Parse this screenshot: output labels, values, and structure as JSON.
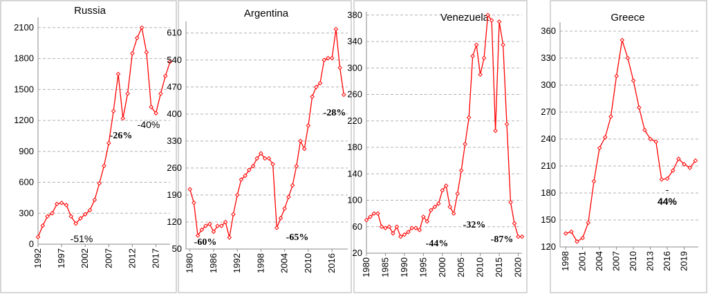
{
  "chart_data": [
    {
      "type": "line",
      "title": "Russia",
      "color": "#ff0000",
      "grid": true,
      "x": [
        1992,
        1993,
        1994,
        1995,
        1996,
        1997,
        1998,
        1999,
        2000,
        2001,
        2002,
        2003,
        2004,
        2005,
        2006,
        2007,
        2008,
        2009,
        2010,
        2011,
        2012,
        2013,
        2014,
        2015,
        2016,
        2017,
        2018,
        2019,
        2020
      ],
      "values": [
        70,
        180,
        270,
        300,
        390,
        400,
        380,
        270,
        200,
        250,
        290,
        330,
        430,
        590,
        760,
        980,
        1290,
        1650,
        1220,
        1460,
        1850,
        2000,
        2100,
        1860,
        1330,
        1270,
        1460,
        1630,
        1770
      ],
      "xlim": [
        1992,
        2020
      ],
      "xticks": [
        1992,
        1997,
        2002,
        2007,
        2012,
        2017
      ],
      "ylim": [
        0,
        2200
      ],
      "yticks": [
        0,
        300,
        600,
        900,
        1200,
        1500,
        1800,
        2100
      ],
      "annotations": [
        "-51%",
        "-26%",
        "-40%"
      ]
    },
    {
      "type": "line",
      "title": "Argentina",
      "color": "#ff0000",
      "grid": true,
      "x": [
        1980,
        1981,
        1982,
        1983,
        1984,
        1985,
        1986,
        1987,
        1988,
        1989,
        1990,
        1991,
        1992,
        1993,
        1994,
        1995,
        1996,
        1997,
        1998,
        1999,
        2000,
        2001,
        2002,
        2003,
        2004,
        2005,
        2006,
        2007,
        2008,
        2009,
        2010,
        2011,
        2012,
        2013,
        2014,
        2015,
        2016,
        2017,
        2018,
        2019
      ],
      "values": [
        205,
        170,
        85,
        100,
        110,
        115,
        95,
        110,
        110,
        120,
        80,
        140,
        190,
        230,
        240,
        255,
        265,
        285,
        298,
        285,
        285,
        270,
        105,
        130,
        155,
        185,
        215,
        265,
        330,
        310,
        370,
        445,
        470,
        480,
        540,
        545,
        545,
        620,
        520,
        450
      ],
      "xlim": [
        1979,
        2020
      ],
      "xticks": [
        1980,
        1986,
        1992,
        1998,
        2004,
        2010,
        2016
      ],
      "ylim": [
        50,
        640
      ],
      "yticks": [
        50,
        120,
        190,
        260,
        330,
        400,
        470,
        540,
        610
      ],
      "annotations": [
        "-60%",
        "-65%",
        "-28%"
      ]
    },
    {
      "type": "line",
      "title": "Venezuela",
      "color": "#ff0000",
      "grid": true,
      "x": [
        1980,
        1981,
        1982,
        1983,
        1984,
        1985,
        1986,
        1987,
        1988,
        1989,
        1990,
        1991,
        1992,
        1993,
        1994,
        1995,
        1996,
        1997,
        1998,
        1999,
        2000,
        2001,
        2002,
        2003,
        2004,
        2005,
        2006,
        2007,
        2008,
        2009,
        2010,
        2011,
        2012,
        2013,
        2014,
        2015,
        2016,
        2017,
        2018,
        2019,
        2020,
        2021
      ],
      "values": [
        70,
        75,
        80,
        80,
        60,
        58,
        60,
        50,
        60,
        45,
        48,
        52,
        58,
        58,
        55,
        75,
        68,
        85,
        90,
        95,
        115,
        122,
        90,
        80,
        110,
        145,
        185,
        225,
        318,
        335,
        290,
        315,
        380,
        372,
        205,
        370,
        335,
        215,
        97,
        65,
        45,
        45
      ],
      "xlim": [
        1980,
        2021
      ],
      "xticks": [
        1980,
        1985,
        1990,
        1995,
        2000,
        2005,
        2010,
        2015,
        2020
      ],
      "ylim": [
        20,
        385
      ],
      "yticks": [
        20,
        60,
        100,
        140,
        180,
        220,
        260,
        300,
        340,
        380
      ],
      "annotations": [
        "-44%",
        "-32%",
        "-87%"
      ]
    },
    {
      "type": "line",
      "title": "Greece",
      "color": "#ff0000",
      "grid": true,
      "x": [
        1998,
        1999,
        2000,
        2001,
        2002,
        2003,
        2004,
        2005,
        2006,
        2007,
        2008,
        2009,
        2010,
        2011,
        2012,
        2013,
        2014,
        2015,
        2016,
        2017,
        2018,
        2019,
        2020,
        2021
      ],
      "values": [
        135,
        137,
        126,
        130,
        147,
        193,
        230,
        242,
        265,
        310,
        350,
        330,
        305,
        275,
        250,
        240,
        237,
        195,
        196,
        205,
        218,
        212,
        208,
        216
      ],
      "xlim": [
        1997,
        2021.5
      ],
      "xticks": [
        1998,
        2001,
        2004,
        2007,
        2010,
        2013,
        2016,
        2019
      ],
      "ylim": [
        120,
        370
      ],
      "yticks": [
        120,
        150,
        180,
        210,
        240,
        270,
        300,
        330,
        360
      ],
      "annotations": [
        "-",
        "44%"
      ]
    }
  ]
}
